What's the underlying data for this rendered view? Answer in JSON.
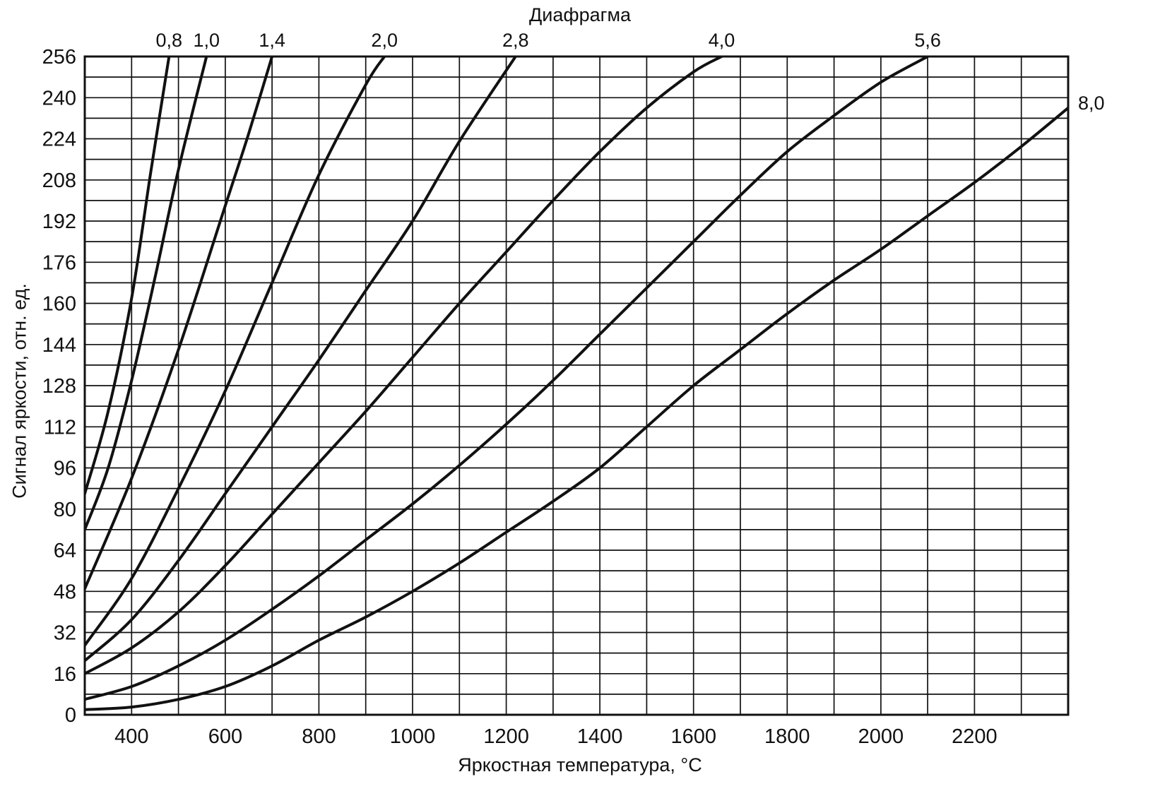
{
  "page": {
    "background": "#ffffff",
    "ink_color": "#111111"
  },
  "chart_data": {
    "type": "line",
    "title": "Диафрагма",
    "xlabel": "Яркостная температура, °С",
    "ylabel": "Сигнал яркости, отн. ед.",
    "xlim": [
      300,
      2400
    ],
    "ylim": [
      0,
      256
    ],
    "grid": true,
    "x_grid_step": 100,
    "y_grid_step": 8,
    "x_ticks": [
      400,
      600,
      800,
      1000,
      1200,
      1400,
      1600,
      1800,
      2000,
      2200
    ],
    "y_ticks": [
      0,
      16,
      32,
      48,
      64,
      80,
      96,
      112,
      128,
      144,
      160,
      176,
      192,
      208,
      224,
      240,
      256
    ],
    "legend_position": "curve-labels-top-and-right",
    "line_color": "#111111",
    "series": [
      {
        "name": "0,8",
        "label_position": "top",
        "points": [
          [
            300,
            86
          ],
          [
            350,
            118
          ],
          [
            400,
            162
          ],
          [
            440,
            210
          ],
          [
            480,
            256
          ]
        ]
      },
      {
        "name": "1,0",
        "label_position": "top",
        "points": [
          [
            300,
            72
          ],
          [
            350,
            96
          ],
          [
            400,
            130
          ],
          [
            450,
            170
          ],
          [
            500,
            212
          ],
          [
            560,
            256
          ]
        ]
      },
      {
        "name": "1,4",
        "label_position": "top",
        "points": [
          [
            300,
            49
          ],
          [
            400,
            92
          ],
          [
            500,
            142
          ],
          [
            600,
            198
          ],
          [
            650,
            226
          ],
          [
            700,
            256
          ]
        ]
      },
      {
        "name": "2,0",
        "label_position": "top",
        "points": [
          [
            300,
            27
          ],
          [
            400,
            53
          ],
          [
            500,
            88
          ],
          [
            600,
            126
          ],
          [
            700,
            168
          ],
          [
            800,
            210
          ],
          [
            900,
            245
          ],
          [
            940,
            256
          ]
        ]
      },
      {
        "name": "2,8",
        "label_position": "top",
        "points": [
          [
            300,
            21
          ],
          [
            400,
            37
          ],
          [
            500,
            60
          ],
          [
            600,
            86
          ],
          [
            700,
            112
          ],
          [
            800,
            138
          ],
          [
            900,
            165
          ],
          [
            1000,
            192
          ],
          [
            1100,
            223
          ],
          [
            1220,
            256
          ]
        ]
      },
      {
        "name": "4,0",
        "label_position": "top",
        "points": [
          [
            300,
            16
          ],
          [
            400,
            26
          ],
          [
            500,
            40
          ],
          [
            600,
            58
          ],
          [
            700,
            78
          ],
          [
            800,
            98
          ],
          [
            900,
            118
          ],
          [
            1000,
            139
          ],
          [
            1100,
            160
          ],
          [
            1200,
            180
          ],
          [
            1300,
            200
          ],
          [
            1400,
            219
          ],
          [
            1500,
            236
          ],
          [
            1600,
            250
          ],
          [
            1660,
            256
          ]
        ]
      },
      {
        "name": "5,6",
        "label_position": "top",
        "points": [
          [
            300,
            6
          ],
          [
            400,
            11
          ],
          [
            500,
            19
          ],
          [
            600,
            29
          ],
          [
            700,
            41
          ],
          [
            800,
            54
          ],
          [
            900,
            68
          ],
          [
            1000,
            82
          ],
          [
            1100,
            97
          ],
          [
            1200,
            113
          ],
          [
            1300,
            130
          ],
          [
            1400,
            148
          ],
          [
            1500,
            166
          ],
          [
            1600,
            184
          ],
          [
            1700,
            202
          ],
          [
            1800,
            219
          ],
          [
            1900,
            233
          ],
          [
            2000,
            246
          ],
          [
            2100,
            256
          ]
        ]
      },
      {
        "name": "8,0",
        "label_position": "right",
        "points": [
          [
            300,
            2
          ],
          [
            400,
            3
          ],
          [
            500,
            6
          ],
          [
            600,
            11
          ],
          [
            700,
            19
          ],
          [
            800,
            29
          ],
          [
            900,
            38
          ],
          [
            1000,
            48
          ],
          [
            1100,
            59
          ],
          [
            1200,
            71
          ],
          [
            1300,
            83
          ],
          [
            1400,
            96
          ],
          [
            1500,
            112
          ],
          [
            1600,
            128
          ],
          [
            1700,
            142
          ],
          [
            1800,
            156
          ],
          [
            1900,
            169
          ],
          [
            2000,
            181
          ],
          [
            2100,
            194
          ],
          [
            2200,
            207
          ],
          [
            2300,
            221
          ],
          [
            2400,
            236
          ]
        ]
      }
    ]
  }
}
